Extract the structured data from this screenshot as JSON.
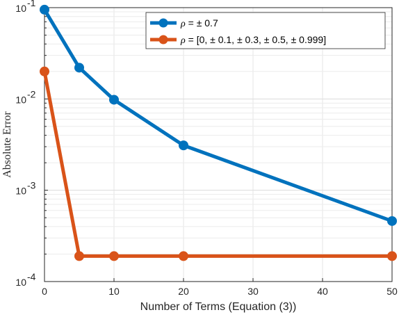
{
  "chart_data": {
    "type": "line",
    "xlabel": "Number of Terms (Equation (3))",
    "ylabel": "Absolute Error",
    "yscale": "log",
    "xlim": [
      0,
      50
    ],
    "ylim": [
      0.0001,
      0.1
    ],
    "xticks": [
      0,
      10,
      20,
      30,
      40,
      50
    ],
    "yticks": [
      {
        "value": 0.0001,
        "base": "10",
        "exp": "-4"
      },
      {
        "value": 0.001,
        "base": "10",
        "exp": "-3"
      },
      {
        "value": 0.01,
        "base": "10",
        "exp": "-2"
      },
      {
        "value": 0.1,
        "base": "10",
        "exp": "-1"
      }
    ],
    "grid": true,
    "legend_position": "top-right",
    "x": [
      0,
      5,
      10,
      20,
      50
    ],
    "series": [
      {
        "symbol": "ρ",
        "name": " = ± 0.7",
        "color": "#0072BD",
        "values": [
          0.095,
          0.022,
          0.0098,
          0.0031,
          0.00046
        ]
      },
      {
        "symbol": "ρ",
        "name": " = [0, ± 0.1, ± 0.3, ± 0.5, ± 0.999]",
        "color": "#D95319",
        "values": [
          0.02,
          0.00019,
          0.00019,
          0.00019,
          0.00019
        ]
      }
    ]
  }
}
